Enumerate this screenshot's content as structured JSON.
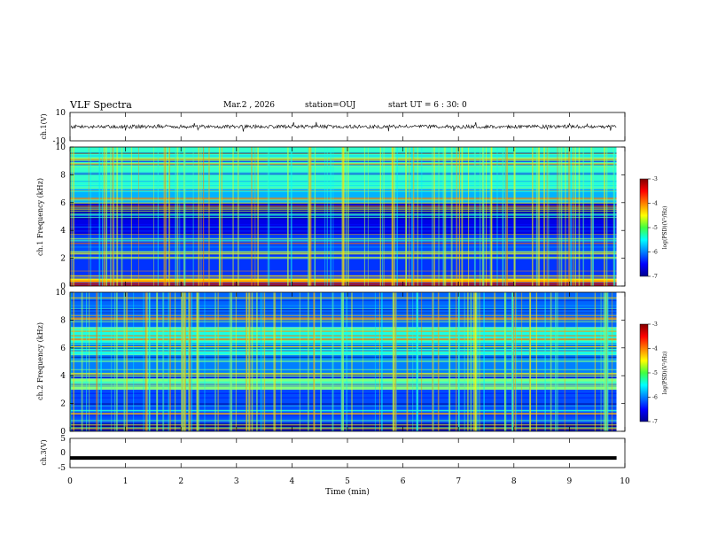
{
  "header": {
    "title": "VLF Spectra",
    "date": "Mar.2 , 2026",
    "station": "station=OUJ",
    "start": "start UT =  6 : 30: 0"
  },
  "chart_data": [
    {
      "type": "line",
      "title": "ch.1(V)",
      "ylabel": "ch.1(V)",
      "ylim": [
        -10,
        10
      ],
      "yticks": [
        "10",
        "-10"
      ],
      "x": [
        0,
        9.85
      ],
      "description_values": {
        "baseline_v": 0
      }
    },
    {
      "type": "heatmap",
      "title": "ch.1 Frequency (kHz)",
      "ylabel": "ch.1 Frequency (kHz)",
      "ylim": [
        0,
        10
      ],
      "yticks": [
        "0",
        "2",
        "4",
        "6",
        "8",
        "10"
      ],
      "xlim": [
        0,
        10
      ],
      "bands": [
        {
          "f0": 0.0,
          "f1": 0.3,
          "level": -3.3
        },
        {
          "f0": 0.3,
          "f1": 0.6,
          "level": -4.2
        },
        {
          "f0": 0.6,
          "f1": 2.0,
          "level": -6.3
        },
        {
          "f0": 2.0,
          "f1": 3.6,
          "level": -6.2
        },
        {
          "f0": 3.6,
          "f1": 5.0,
          "level": -6.6
        },
        {
          "f0": 5.0,
          "f1": 6.0,
          "level": -6.8
        },
        {
          "f0": 6.0,
          "f1": 7.0,
          "level": -5.8
        },
        {
          "f0": 7.0,
          "f1": 10.0,
          "level": -5.3
        }
      ]
    },
    {
      "type": "heatmap",
      "title": "ch.2 Frequency (kHz)",
      "ylabel": "ch.2 Frequency (kHz)",
      "ylim": [
        0,
        10
      ],
      "yticks": [
        "0",
        "2",
        "4",
        "6",
        "8",
        "10"
      ],
      "xlim": [
        0,
        10
      ],
      "bands": [
        {
          "f0": 0.0,
          "f1": 0.6,
          "level": -6.9
        },
        {
          "f0": 0.6,
          "f1": 3.0,
          "level": -6.2
        },
        {
          "f0": 3.0,
          "f1": 3.8,
          "level": -5.0
        },
        {
          "f0": 3.8,
          "f1": 5.5,
          "level": -6.0
        },
        {
          "f0": 5.5,
          "f1": 7.5,
          "level": -5.4
        },
        {
          "f0": 7.5,
          "f1": 10.0,
          "level": -6.1
        }
      ]
    },
    {
      "type": "line",
      "title": "ch.3(V)",
      "ylabel": "ch.3(V)",
      "ylim": [
        -5,
        5
      ],
      "yticks": [
        "5",
        "0",
        "-5"
      ],
      "x": [
        0,
        9.85
      ],
      "y": [
        -1.7,
        -1.7
      ]
    }
  ],
  "xaxis": {
    "label": "Time (min)",
    "ticks": [
      "0",
      "1",
      "2",
      "3",
      "4",
      "5",
      "6",
      "7",
      "8",
      "9",
      "10"
    ],
    "data_end_min": 9.85
  },
  "colorbar": {
    "label": "log(PSD)(V²/Hz)",
    "ticks": [
      "-3",
      "-4",
      "-5",
      "-6",
      "-7"
    ],
    "range": [
      -7,
      -3
    ]
  }
}
